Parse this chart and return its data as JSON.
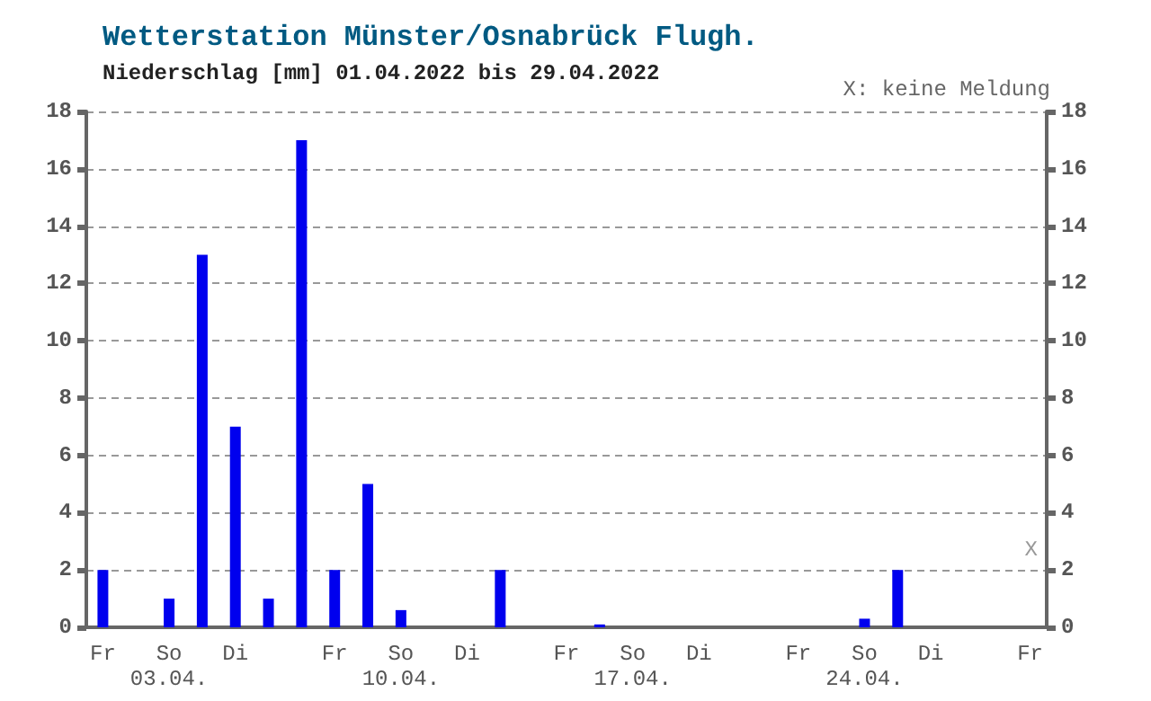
{
  "chart_data": {
    "type": "bar",
    "title": "Wetterstation Münster/Osnabrück Flugh.",
    "subtitle": "Niederschlag [mm] 01.04.2022 bis 29.04.2022",
    "annotations": [
      "X: keine Meldung",
      "X"
    ],
    "categories": [
      "Fr",
      null,
      "So\n03.04.",
      null,
      "Di",
      null,
      null,
      "Fr",
      null,
      "So\n10.04.",
      null,
      "Di",
      null,
      null,
      "Fr",
      null,
      "So\n17.04.",
      null,
      "Di",
      null,
      null,
      "Fr",
      null,
      "So\n24.04.",
      null,
      "Di",
      null,
      null,
      "Fr"
    ],
    "values": [
      2,
      0,
      1,
      13,
      7,
      1,
      17,
      2,
      5,
      0.6,
      0,
      0,
      2,
      0,
      0,
      0.1,
      0,
      0,
      0,
      0,
      0,
      0,
      0,
      0.3,
      2,
      0,
      0,
      0,
      null
    ],
    "color": "#0000ee",
    "ylim": [
      0,
      18
    ],
    "yticks": [
      0,
      2,
      4,
      6,
      8,
      10,
      12,
      14,
      16,
      18
    ],
    "y2lim": [
      0,
      18
    ],
    "y2ticks": [
      0,
      2,
      4,
      6,
      8,
      10,
      12,
      14,
      16,
      18
    ],
    "grid": "y"
  }
}
